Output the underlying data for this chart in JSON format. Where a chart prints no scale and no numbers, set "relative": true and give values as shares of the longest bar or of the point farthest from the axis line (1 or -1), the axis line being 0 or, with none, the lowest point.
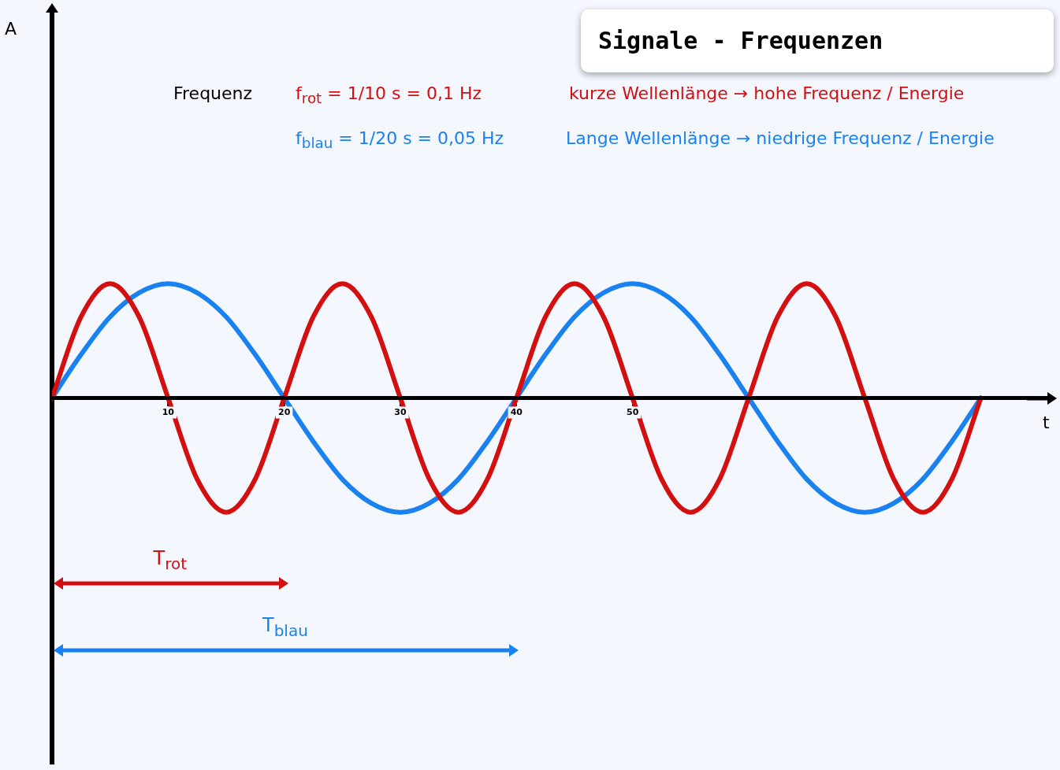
{
  "chart_data": {
    "type": "line",
    "title": "Signale - Frequenzen",
    "xlabel": "t",
    "relative": true,
    "grid": false,
    "legend": false,
    "marker": "none",
    "line_style": "solid",
    "x": [
      0,
      2.5,
      5,
      7.5,
      10,
      12.5,
      15,
      17.5,
      20,
      22.5,
      25,
      27.5,
      30,
      32.5,
      35,
      37.5,
      40,
      42.5,
      45,
      47.5,
      50,
      52.5,
      55,
      57.5,
      60,
      62.5,
      65,
      67.5,
      70,
      72.5,
      75,
      77.5,
      80
    ],
    "xlim": [
      0,
      86
    ],
    "xticks": [
      10,
      20,
      30,
      40,
      50
    ],
    "series": [
      {
        "color": "#d40f0f",
        "values": [
          0,
          0.71,
          1,
          0.71,
          0,
          -0.71,
          -1,
          -0.71,
          0,
          0.71,
          1,
          0.71,
          0,
          -0.71,
          -1,
          -0.71,
          0,
          0.71,
          1,
          0.71,
          0,
          -0.71,
          -1,
          -0.71,
          0,
          0.71,
          1,
          0.71,
          0,
          -0.71,
          -1,
          -0.71,
          0
        ]
      },
      {
        "color": "#1a82f0",
        "values": [
          0,
          0.38,
          0.71,
          0.92,
          1,
          0.92,
          0.71,
          0.38,
          0,
          -0.38,
          -0.71,
          -0.92,
          -1,
          -0.92,
          -0.71,
          -0.38,
          0,
          0.38,
          0.71,
          0.92,
          1,
          0.92,
          0.71,
          0.38,
          0,
          -0.38,
          -0.71,
          -0.92,
          -1,
          -0.92,
          -0.71,
          -0.38,
          0
        ]
      }
    ],
    "annotations": [
      "Frequenz",
      "f$_{rot}$ = 1/10 s = 0,1 Hz",
      "f$_{blau}$ = 1/20 s = 0,05 Hz",
      "kurze Wellenlänge → hohe Frequenz / Energie",
      "Lange Wellenlänge → niedrige Frequenz / Energie",
      "T$_{rot}$",
      "T$_{blau}$",
      "A"
    ]
  }
}
